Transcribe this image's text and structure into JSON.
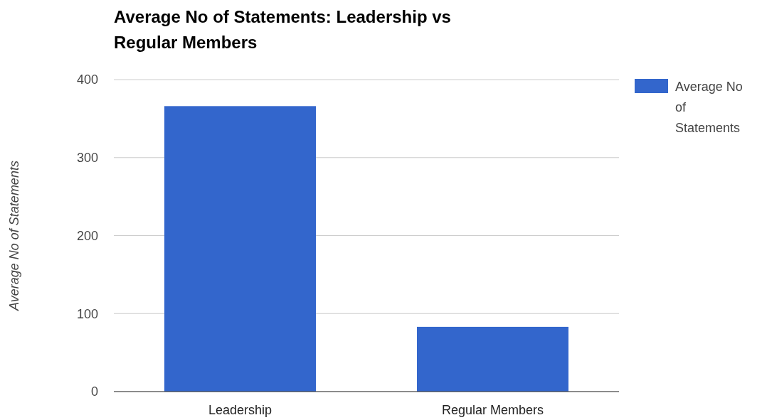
{
  "chart_data": {
    "type": "bar",
    "title": "Average No of Statements: Leadership vs Regular Members",
    "ylabel": "Average No of Statements",
    "categories": [
      "Leadership",
      "Regular Members"
    ],
    "series": [
      {
        "name": "Average No of Statements",
        "color": "#3366cc",
        "values": [
          366,
          83
        ]
      }
    ],
    "ylim": [
      0,
      400
    ],
    "yticks": [
      0,
      100,
      200,
      300,
      400
    ],
    "grid": "y",
    "legend": "right"
  }
}
